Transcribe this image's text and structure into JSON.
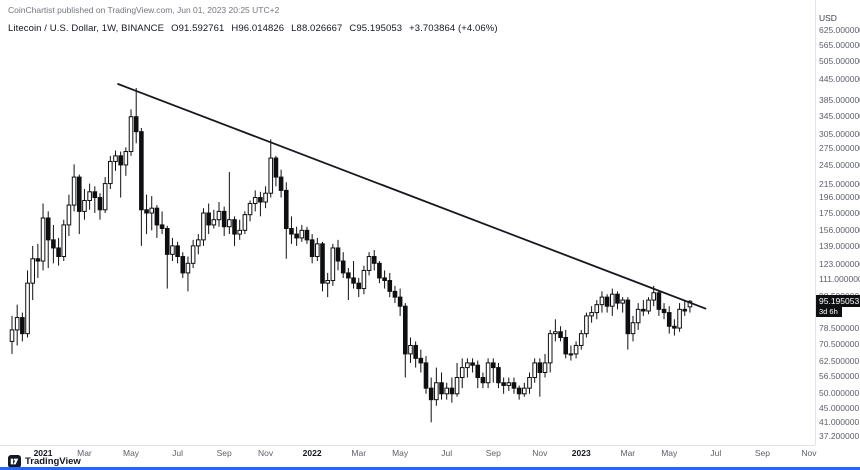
{
  "watermark": "CoinChartist published on TradingView.com, Jun 01, 2023 20:25 UTC+2",
  "legend": {
    "symbol": "Litecoin / U.S. Dollar, 1W, BINANCE",
    "open": "O91.592761",
    "high": "H96.014826",
    "low": "L88.026667",
    "close": "C95.195053",
    "change": "+3.703864 (+4.06%)"
  },
  "price_axis": {
    "unit_label": "USD",
    "ticks": [
      "625.000000",
      "565.000000",
      "505.000000",
      "445.000000",
      "385.000000",
      "345.000000",
      "305.000000",
      "275.000000",
      "245.000000",
      "215.000000",
      "196.000000",
      "175.000000",
      "156.000000",
      "139.000000",
      "123.000000",
      "111.000000",
      "98.500000",
      "78.500000",
      "70.500000",
      "62.500000",
      "56.500000",
      "50.000000",
      "45.000000",
      "41.000000",
      "37.200000"
    ],
    "last_price": {
      "label": "95.195053",
      "countdown": "3d 6h"
    }
  },
  "time_axis": {
    "labels": [
      {
        "text": "2021",
        "index": 6,
        "major": true
      },
      {
        "text": "Mar",
        "index": 14
      },
      {
        "text": "May",
        "index": 23
      },
      {
        "text": "Jul",
        "index": 32
      },
      {
        "text": "Sep",
        "index": 41
      },
      {
        "text": "Nov",
        "index": 49
      },
      {
        "text": "2022",
        "index": 58,
        "major": true
      },
      {
        "text": "Mar",
        "index": 67
      },
      {
        "text": "May",
        "index": 75
      },
      {
        "text": "Jul",
        "index": 84
      },
      {
        "text": "Sep",
        "index": 93
      },
      {
        "text": "Nov",
        "index": 102
      },
      {
        "text": "2023",
        "index": 110,
        "major": true
      },
      {
        "text": "Mar",
        "index": 119
      },
      {
        "text": "May",
        "index": 127
      },
      {
        "text": "Jul",
        "index": 136
      },
      {
        "text": "Sep",
        "index": 145
      },
      {
        "text": "Nov",
        "index": 154
      }
    ]
  },
  "footer": {
    "brand": "TradingView"
  },
  "colors": {
    "up_candle": "#ffffff",
    "down_candle": "#0e0f11",
    "wick": "#0e0f11",
    "trendline": "#16181d",
    "badge_bg": "#0e0f11",
    "badge_fg": "#ffffff",
    "axis_text": "#5d606b",
    "axis_border": "#e0e3eb",
    "accent_bar": "#2962ff"
  },
  "chart_data": {
    "type": "candlestick",
    "title": "Litecoin / U.S. Dollar, 1W, BINANCE",
    "scale": "logarithmic",
    "ylim": [
      35.5,
      656
    ],
    "interval": "weekly",
    "columns": [
      "week_start",
      "open",
      "high",
      "low",
      "close"
    ],
    "candles": [
      [
        "2020-11-23",
        72,
        86,
        66,
        78
      ],
      [
        "2020-11-30",
        78,
        93,
        70,
        85
      ],
      [
        "2020-12-07",
        85,
        88,
        72,
        76
      ],
      [
        "2020-12-14",
        76,
        118,
        74,
        108
      ],
      [
        "2020-12-21",
        108,
        140,
        96,
        128
      ],
      [
        "2020-12-28",
        128,
        142,
        112,
        126
      ],
      [
        "2021-01-04",
        126,
        188,
        118,
        170
      ],
      [
        "2021-01-11",
        170,
        178,
        120,
        146
      ],
      [
        "2021-01-18",
        146,
        162,
        124,
        138
      ],
      [
        "2021-01-25",
        138,
        148,
        122,
        130
      ],
      [
        "2021-02-01",
        130,
        168,
        126,
        162
      ],
      [
        "2021-02-08",
        162,
        200,
        150,
        186
      ],
      [
        "2021-02-15",
        186,
        247,
        178,
        226
      ],
      [
        "2021-02-22",
        226,
        230,
        152,
        178
      ],
      [
        "2021-03-01",
        178,
        208,
        168,
        192
      ],
      [
        "2021-03-08",
        192,
        216,
        180,
        204
      ],
      [
        "2021-03-15",
        204,
        212,
        176,
        196
      ],
      [
        "2021-03-22",
        196,
        202,
        168,
        180
      ],
      [
        "2021-03-29",
        180,
        226,
        176,
        216
      ],
      [
        "2021-04-05",
        216,
        262,
        208,
        252
      ],
      [
        "2021-04-12",
        252,
        272,
        236,
        262
      ],
      [
        "2021-04-19",
        262,
        270,
        196,
        246
      ],
      [
        "2021-04-26",
        246,
        278,
        228,
        270
      ],
      [
        "2021-05-03",
        270,
        362,
        262,
        344
      ],
      [
        "2021-05-10",
        344,
        420,
        286,
        310
      ],
      [
        "2021-05-17",
        310,
        318,
        140,
        180
      ],
      [
        "2021-05-24",
        180,
        200,
        152,
        176
      ],
      [
        "2021-05-31",
        176,
        198,
        156,
        182
      ],
      [
        "2021-06-07",
        182,
        186,
        148,
        162
      ],
      [
        "2021-06-14",
        162,
        178,
        152,
        158
      ],
      [
        "2021-06-21",
        158,
        161,
        104,
        132
      ],
      [
        "2021-06-28",
        132,
        148,
        126,
        140
      ],
      [
        "2021-07-05",
        140,
        144,
        124,
        130
      ],
      [
        "2021-07-12",
        130,
        134,
        112,
        116
      ],
      [
        "2021-07-19",
        116,
        130,
        102,
        124
      ],
      [
        "2021-07-26",
        124,
        146,
        120,
        140
      ],
      [
        "2021-08-02",
        140,
        152,
        132,
        146
      ],
      [
        "2021-08-09",
        146,
        182,
        140,
        176
      ],
      [
        "2021-08-16",
        176,
        188,
        152,
        162
      ],
      [
        "2021-08-23",
        162,
        180,
        158,
        168
      ],
      [
        "2021-08-30",
        168,
        190,
        160,
        178
      ],
      [
        "2021-09-06",
        178,
        184,
        150,
        160
      ],
      [
        "2021-09-13",
        160,
        234,
        152,
        168
      ],
      [
        "2021-09-20",
        168,
        172,
        140,
        152
      ],
      [
        "2021-09-27",
        152,
        168,
        146,
        156
      ],
      [
        "2021-10-04",
        156,
        178,
        152,
        174
      ],
      [
        "2021-10-11",
        174,
        192,
        166,
        188
      ],
      [
        "2021-10-18",
        188,
        206,
        178,
        196
      ],
      [
        "2021-10-25",
        196,
        204,
        172,
        190
      ],
      [
        "2021-11-01",
        190,
        212,
        182,
        202
      ],
      [
        "2021-11-08",
        202,
        294,
        196,
        258
      ],
      [
        "2021-11-15",
        258,
        262,
        212,
        226
      ],
      [
        "2021-11-22",
        226,
        238,
        196,
        206
      ],
      [
        "2021-11-29",
        206,
        218,
        128,
        158
      ],
      [
        "2021-12-06",
        158,
        172,
        142,
        152
      ],
      [
        "2021-12-13",
        152,
        160,
        140,
        148
      ],
      [
        "2021-12-20",
        148,
        162,
        144,
        156
      ],
      [
        "2021-12-27",
        156,
        160,
        142,
        146
      ],
      [
        "2022-01-03",
        146,
        152,
        124,
        130
      ],
      [
        "2022-01-10",
        130,
        148,
        126,
        142
      ],
      [
        "2022-01-17",
        142,
        144,
        102,
        108
      ],
      [
        "2022-01-24",
        108,
        116,
        98,
        110
      ],
      [
        "2022-01-31",
        110,
        142,
        106,
        138
      ],
      [
        "2022-02-07",
        138,
        146,
        118,
        126
      ],
      [
        "2022-02-14",
        126,
        134,
        112,
        116
      ],
      [
        "2022-02-21",
        116,
        120,
        96,
        112
      ],
      [
        "2022-02-28",
        112,
        126,
        104,
        108
      ],
      [
        "2022-03-07",
        108,
        112,
        98,
        104
      ],
      [
        "2022-03-14",
        104,
        122,
        100,
        118
      ],
      [
        "2022-03-21",
        118,
        134,
        114,
        130
      ],
      [
        "2022-03-28",
        130,
        136,
        118,
        124
      ],
      [
        "2022-04-04",
        124,
        126,
        108,
        112
      ],
      [
        "2022-04-11",
        112,
        118,
        104,
        110
      ],
      [
        "2022-04-18",
        110,
        116,
        98,
        102
      ],
      [
        "2022-04-25",
        102,
        106,
        94,
        98
      ],
      [
        "2022-05-02",
        98,
        104,
        86,
        92
      ],
      [
        "2022-05-09",
        92,
        94,
        56,
        66
      ],
      [
        "2022-05-16",
        66,
        74,
        62,
        70
      ],
      [
        "2022-05-23",
        70,
        72,
        60,
        64
      ],
      [
        "2022-05-30",
        64,
        68,
        58,
        62
      ],
      [
        "2022-06-06",
        62,
        65,
        50,
        52
      ],
      [
        "2022-06-13",
        52,
        56,
        41,
        48
      ],
      [
        "2022-06-20",
        48,
        60,
        46,
        54
      ],
      [
        "2022-06-27",
        54,
        58,
        48,
        50
      ],
      [
        "2022-07-04",
        50,
        54,
        48,
        52
      ],
      [
        "2022-07-11",
        52,
        56,
        47,
        50
      ],
      [
        "2022-07-18",
        50,
        62,
        49,
        56
      ],
      [
        "2022-07-25",
        56,
        64,
        52,
        60
      ],
      [
        "2022-08-01",
        60,
        64,
        56,
        62
      ],
      [
        "2022-08-08",
        62,
        64,
        58,
        61
      ],
      [
        "2022-08-15",
        61,
        63,
        52,
        56
      ],
      [
        "2022-08-22",
        56,
        58,
        52,
        54
      ],
      [
        "2022-08-29",
        54,
        64,
        52,
        62
      ],
      [
        "2022-09-05",
        62,
        64,
        54,
        60
      ],
      [
        "2022-09-12",
        60,
        62,
        52,
        54
      ],
      [
        "2022-09-19",
        54,
        56,
        50,
        53
      ],
      [
        "2022-09-26",
        53,
        56,
        51,
        54
      ],
      [
        "2022-10-03",
        54,
        56,
        50,
        52
      ],
      [
        "2022-10-10",
        52,
        53,
        48,
        50
      ],
      [
        "2022-10-17",
        50,
        54,
        49,
        52
      ],
      [
        "2022-10-24",
        52,
        58,
        50,
        56
      ],
      [
        "2022-10-31",
        56,
        64,
        54,
        62
      ],
      [
        "2022-11-07",
        62,
        64,
        49,
        58
      ],
      [
        "2022-11-14",
        58,
        66,
        56,
        62
      ],
      [
        "2022-11-21",
        62,
        78,
        58,
        76
      ],
      [
        "2022-11-28",
        76,
        84,
        72,
        77
      ],
      [
        "2022-12-05",
        77,
        80,
        72,
        74
      ],
      [
        "2022-12-12",
        74,
        78,
        64,
        66
      ],
      [
        "2022-12-19",
        66,
        70,
        63,
        66
      ],
      [
        "2022-12-26",
        66,
        72,
        64,
        70
      ],
      [
        "2023-01-02",
        70,
        78,
        68,
        76
      ],
      [
        "2023-01-09",
        76,
        88,
        74,
        86
      ],
      [
        "2023-01-16",
        86,
        92,
        82,
        88
      ],
      [
        "2023-01-23",
        88,
        96,
        84,
        93
      ],
      [
        "2023-01-30",
        93,
        102,
        88,
        98
      ],
      [
        "2023-02-06",
        98,
        100,
        88,
        92
      ],
      [
        "2023-02-13",
        92,
        104,
        86,
        100
      ],
      [
        "2023-02-20",
        100,
        102,
        90,
        94
      ],
      [
        "2023-02-27",
        94,
        98,
        88,
        96
      ],
      [
        "2023-03-06",
        96,
        98,
        68,
        76
      ],
      [
        "2023-03-13",
        76,
        86,
        72,
        82
      ],
      [
        "2023-03-20",
        82,
        94,
        78,
        90
      ],
      [
        "2023-03-27",
        90,
        96,
        86,
        89
      ],
      [
        "2023-04-03",
        89,
        98,
        87,
        96
      ],
      [
        "2023-04-10",
        96,
        106,
        92,
        101
      ],
      [
        "2023-04-17",
        101,
        103,
        86,
        90
      ],
      [
        "2023-04-24",
        90,
        94,
        84,
        88
      ],
      [
        "2023-05-01",
        88,
        92,
        76,
        80
      ],
      [
        "2023-05-08",
        80,
        84,
        75,
        79
      ],
      [
        "2023-05-15",
        79,
        94,
        77,
        90
      ],
      [
        "2023-05-22",
        90,
        96,
        86,
        89
      ],
      [
        "2023-05-29",
        91.592761,
        96.014826,
        88.026667,
        95.195053
      ]
    ],
    "trendline": {
      "description": "descending resistance from May 2021 high through Nov 2021 high",
      "from": {
        "index": 20.5,
        "price": 432
      },
      "to": {
        "index": 134,
        "price": 90.5
      }
    },
    "last": {
      "open": 91.592761,
      "high": 96.014826,
      "low": 88.026667,
      "close": 95.195053,
      "change": 3.703864,
      "change_pct": 4.06
    }
  }
}
